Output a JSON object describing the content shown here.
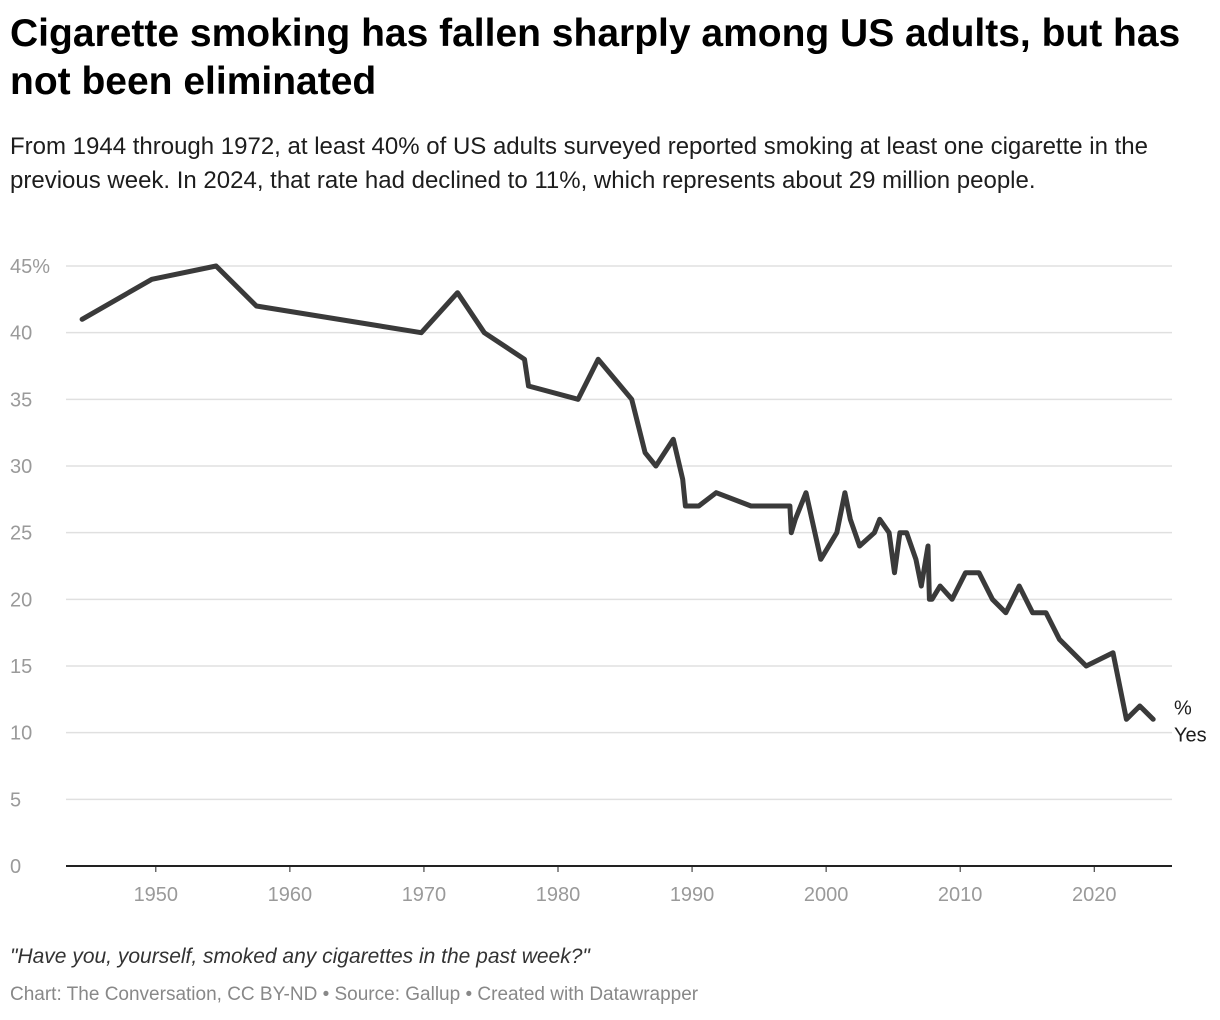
{
  "page": {
    "title": "Cigarette smoking has fallen sharply among US adults, but has not been eliminated",
    "subtitle": "From 1944 through 1972, at least 40% of US adults surveyed reported smoking at least one cigarette in the previous week. In 2024, that rate had declined to 11%, which represents about 29 million people.",
    "note": "\"Have you, yourself, smoked any cigarettes in the past week?\"",
    "source": "Chart: The Conversation, CC BY-ND • Source: Gallup • Created with Datawrapper"
  },
  "colors": {
    "line": "#3a3a3a",
    "grid": "#e0e0e0",
    "axis": "#222222",
    "tick": "#9a9a9a"
  },
  "chart_data": {
    "type": "line",
    "title": "Cigarette smoking has fallen sharply among US adults, but has not been eliminated",
    "xlabel": "",
    "ylabel": "",
    "xlim": [
      1943.3,
      2025.8
    ],
    "ylim": [
      0,
      45
    ],
    "x_ticks": [
      1950,
      1960,
      1970,
      1980,
      1990,
      2000,
      2010,
      2020
    ],
    "y_ticks": [
      0,
      5,
      10,
      15,
      20,
      25,
      30,
      35,
      40,
      45
    ],
    "y_tick_labels": [
      "0",
      "5",
      "10",
      "15",
      "20",
      "25",
      "30",
      "35",
      "40",
      "45%"
    ],
    "grid": true,
    "series": [
      {
        "name": "% Yes",
        "label_line1": "%",
        "label_line2": "Yes",
        "x": [
          1944.5,
          1949.7,
          1954.5,
          1957.5,
          1969.8,
          1972.5,
          1974.5,
          1977.5,
          1977.8,
          1981.5,
          1983.0,
          1985.5,
          1986.5,
          1987.3,
          1988.6,
          1989.3,
          1989.5,
          1990.5,
          1991.8,
          1994.4,
          1997.3,
          1997.4,
          1997.7,
          1998.5,
          1999.6,
          2000.8,
          2001.4,
          2001.8,
          2002.5,
          2003.6,
          2004.0,
          2004.7,
          2005.1,
          2005.5,
          2006.0,
          2006.7,
          2007.1,
          2007.6,
          2007.7,
          2007.9,
          2008.5,
          2009.4,
          2010.4,
          2011.4,
          2012.4,
          2013.4,
          2014.4,
          2015.4,
          2016.4,
          2017.4,
          2019.4,
          2021.4,
          2022.4,
          2023.4,
          2024.4
        ],
        "values": [
          41,
          44,
          45,
          42,
          40,
          43,
          40,
          38,
          36,
          35,
          38,
          35,
          31,
          30,
          32,
          29,
          27,
          27,
          28,
          27,
          27,
          25,
          26,
          28,
          23,
          25,
          28,
          26,
          24,
          25,
          26,
          25,
          22,
          25,
          25,
          23,
          21,
          24,
          20,
          20,
          21,
          20,
          22,
          22,
          20,
          19,
          21,
          19,
          19,
          17,
          15,
          16,
          11,
          12,
          11
        ]
      }
    ]
  }
}
